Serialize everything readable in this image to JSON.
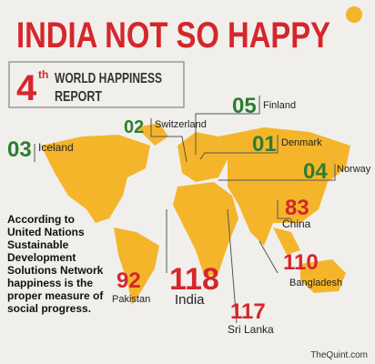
{
  "header": {
    "title": "INDIA NOT SO HAPPY",
    "edition": "4",
    "edition_suffix": "th",
    "report_line1": "WORLD HAPPINESS",
    "report_line2": "REPORT"
  },
  "rankings": [
    {
      "rank": "03",
      "country": "Iceland"
    },
    {
      "rank": "02",
      "country": "Switzerland"
    },
    {
      "rank": "05",
      "country": "Finland"
    },
    {
      "rank": "01",
      "country": "Denmark"
    },
    {
      "rank": "04",
      "country": "Norway"
    },
    {
      "rank": "83",
      "country": "China"
    },
    {
      "rank": "110",
      "country": "Bangladesh"
    },
    {
      "rank": "92",
      "country": "Pakistan"
    },
    {
      "rank": "118",
      "country": "India"
    },
    {
      "rank": "117",
      "country": "Sri Lanka"
    }
  ],
  "note": {
    "lines": [
      "According to",
      "United Nations",
      "Sustainable",
      "Development",
      "Solutions Network",
      "happiness is the",
      "proper measure of",
      "social progress."
    ]
  },
  "source": "TheQuint.com"
}
